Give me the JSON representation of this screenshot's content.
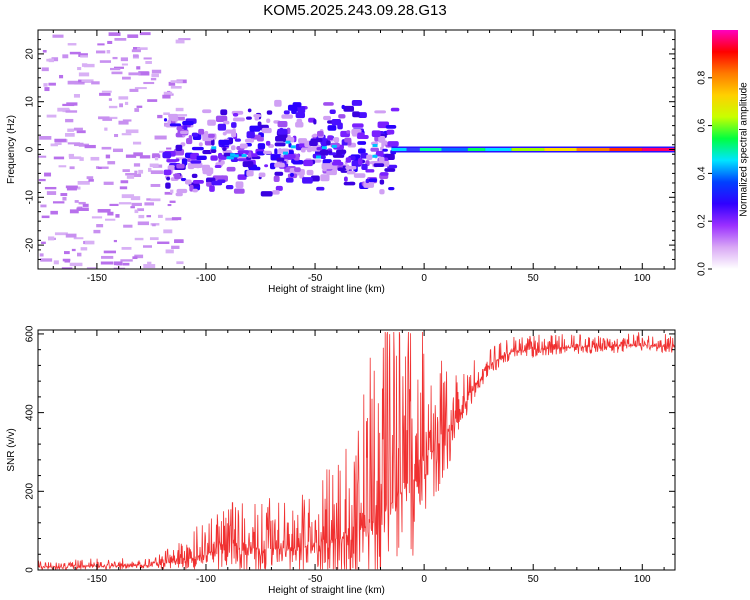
{
  "title": "KOM5.2025.243.09.28.G13",
  "colors": {
    "spectrum_low": "#c890f0",
    "spectrum_mid": "#3010ff",
    "snr_line": "#f03030",
    "axis": "#000000"
  },
  "chart_data": [
    {
      "type": "heatmap",
      "name": "spectrogram",
      "xlabel": "Height of straight line (km)",
      "ylabel": "Frequency (Hz)",
      "xlim": [
        -177,
        115
      ],
      "ylim": [
        -25,
        25
      ],
      "x_ticks": [
        -150,
        -100,
        -50,
        0,
        50,
        100
      ],
      "y_ticks": [
        -20,
        -10,
        0,
        10,
        20
      ],
      "colorbar": {
        "label": "Normalized spectral amplitude",
        "range": [
          0,
          1
        ],
        "ticks": [
          0.0,
          0.2,
          0.4,
          0.6,
          0.8
        ],
        "colors": [
          "#ffffff",
          "#d9a8f5",
          "#9b30ff",
          "#3000ff",
          "#0040ff",
          "#00e5ff",
          "#00ff40",
          "#c8ff00",
          "#ffd000",
          "#ff7a00",
          "#ff0000",
          "#ff00c0"
        ]
      },
      "features": {
        "noise_region_end_km": -120,
        "broad_region": [
          -120,
          -15
        ],
        "line_region_start_km": -15,
        "line_frequency_hz": 0
      }
    },
    {
      "type": "line",
      "name": "snr",
      "xlabel": "Height of straight line (km)",
      "ylabel": "SNR (v/v)",
      "xlim": [
        -177,
        115
      ],
      "ylim": [
        0,
        610
      ],
      "x_ticks": [
        -150,
        -100,
        -50,
        0,
        50,
        100
      ],
      "y_ticks": [
        0,
        200,
        400,
        600
      ],
      "envelope": [
        {
          "x": -177,
          "base": 8,
          "amp": 10
        },
        {
          "x": -150,
          "base": 10,
          "amp": 12
        },
        {
          "x": -125,
          "base": 12,
          "amp": 12
        },
        {
          "x": -110,
          "base": 25,
          "amp": 35
        },
        {
          "x": -95,
          "base": 50,
          "amp": 70
        },
        {
          "x": -80,
          "base": 55,
          "amp": 80
        },
        {
          "x": -65,
          "base": 55,
          "amp": 80
        },
        {
          "x": -50,
          "base": 60,
          "amp": 90
        },
        {
          "x": -40,
          "base": 80,
          "amp": 140
        },
        {
          "x": -30,
          "base": 100,
          "amp": 190
        },
        {
          "x": -20,
          "base": 140,
          "amp": 300
        },
        {
          "x": -10,
          "base": 200,
          "amp": 300
        },
        {
          "x": 0,
          "base": 280,
          "amp": 220
        },
        {
          "x": 10,
          "base": 340,
          "amp": 120
        },
        {
          "x": 20,
          "base": 440,
          "amp": 50
        },
        {
          "x": 30,
          "base": 520,
          "amp": 30
        },
        {
          "x": 40,
          "base": 555,
          "amp": 25
        },
        {
          "x": 60,
          "base": 565,
          "amp": 22
        },
        {
          "x": 80,
          "base": 568,
          "amp": 22
        },
        {
          "x": 100,
          "base": 570,
          "amp": 22
        },
        {
          "x": 115,
          "base": 570,
          "amp": 22
        }
      ]
    }
  ]
}
